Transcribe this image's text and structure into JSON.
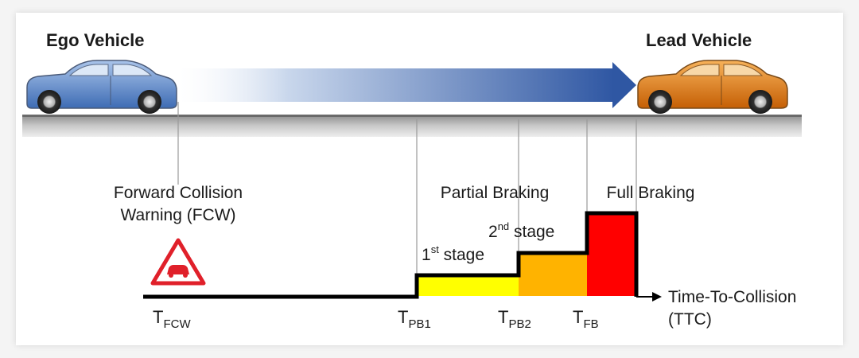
{
  "vehicles": {
    "ego": {
      "label": "Ego Vehicle",
      "color": "#5b87c7"
    },
    "lead": {
      "label": "Lead Vehicle",
      "color": "#e07a12"
    }
  },
  "warning": {
    "line1": "Forward Collision",
    "line2": "Warning (FCW)",
    "icon": "warning-car-triangle-icon"
  },
  "stages": {
    "partial_braking": "Partial Braking",
    "first_stage_base": "1",
    "first_stage_sup": "st",
    "first_stage_rest": " stage",
    "second_stage_base": "2",
    "second_stage_sup": "nd",
    "second_stage_rest": " stage",
    "full_braking": "Full Braking"
  },
  "axis": {
    "line1": "Time-To-Collision",
    "line2": "(TTC)"
  },
  "markers": {
    "fcw": {
      "base": "T",
      "sub": "FCW"
    },
    "pb1": {
      "base": "T",
      "sub": "PB1"
    },
    "pb2": {
      "base": "T",
      "sub": "PB2"
    },
    "fb": {
      "base": "T",
      "sub": "FB"
    }
  },
  "colors": {
    "stage1": "#ffff00",
    "stage2": "#ffb300",
    "full": "#ff0000",
    "warning_red": "#e0202a",
    "arrow": "#3a5fa8"
  }
}
